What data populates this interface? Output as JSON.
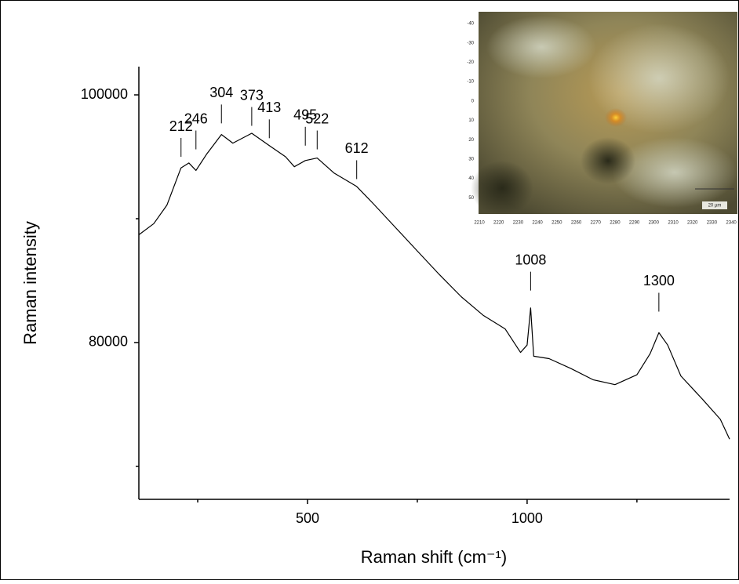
{
  "chart_data": {
    "type": "line",
    "xlabel": "Raman shift (cm⁻¹)",
    "ylabel": "Raman intensity",
    "x": [
      116,
      150,
      180,
      212,
      230,
      246,
      270,
      304,
      330,
      373,
      413,
      450,
      470,
      495,
      522,
      560,
      612,
      650,
      700,
      750,
      800,
      850,
      900,
      950,
      985,
      1000,
      1008,
      1015,
      1050,
      1100,
      1150,
      1200,
      1250,
      1280,
      1300,
      1320,
      1350,
      1400,
      1440,
      1461
    ],
    "values": [
      88700,
      89600,
      91100,
      94100,
      94500,
      93900,
      95200,
      96800,
      96100,
      96900,
      95900,
      95000,
      94200,
      94700,
      94900,
      93700,
      92600,
      91200,
      89300,
      87400,
      85500,
      83700,
      82200,
      81100,
      79200,
      79800,
      82800,
      78900,
      78700,
      77900,
      77000,
      76600,
      77400,
      79100,
      80800,
      79800,
      77300,
      75400,
      73800,
      72200
    ],
    "color": "#000000",
    "xlim": [
      116,
      1461
    ],
    "ylim": [
      67340,
      102280
    ],
    "xticks": [
      500,
      1000
    ],
    "xminorticks": [
      250,
      750,
      1250
    ],
    "yticks": [
      80000,
      100000
    ],
    "yminorticks": [
      70000,
      90000
    ],
    "annotations": [
      {
        "label": "212",
        "x": 212,
        "y": 95000
      },
      {
        "label": "246",
        "x": 246,
        "y": 95600
      },
      {
        "label": "304",
        "x": 304,
        "y": 97700
      },
      {
        "label": "373",
        "x": 373,
        "y": 97500
      },
      {
        "label": "413",
        "x": 413,
        "y": 96500
      },
      {
        "label": "495",
        "x": 495,
        "y": 95900
      },
      {
        "label": "522",
        "x": 522,
        "y": 95600
      },
      {
        "label": "612",
        "x": 612,
        "y": 93200
      },
      {
        "label": "1008",
        "x": 1008,
        "y": 84200
      },
      {
        "label": "1300",
        "x": 1300,
        "y": 82500
      }
    ]
  },
  "inset": {
    "yticks": [
      -40,
      -30,
      -20,
      -10,
      0,
      10,
      20,
      30,
      40,
      50
    ],
    "xticks": [
      2210,
      2220,
      2230,
      2240,
      2250,
      2260,
      2270,
      2280,
      2290,
      2300,
      2310,
      2320,
      2330,
      2340
    ],
    "scale_bar": "20 µm"
  }
}
